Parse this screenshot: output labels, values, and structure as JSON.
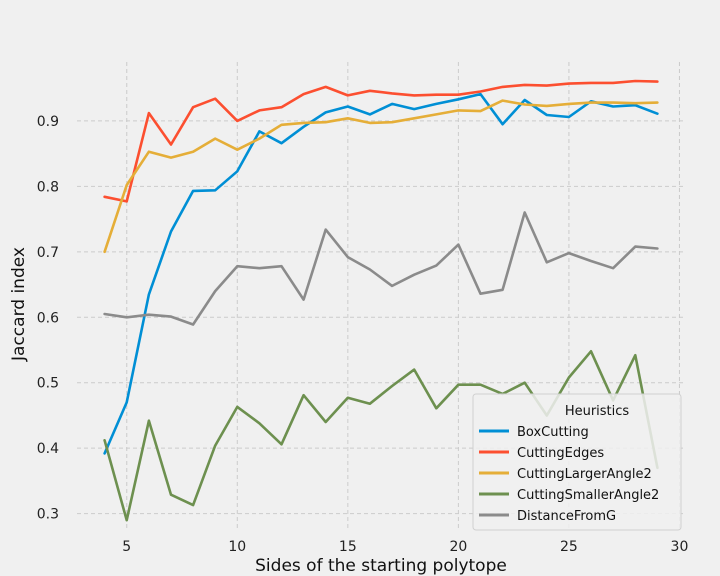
{
  "chart_data": {
    "type": "line",
    "title": "",
    "xlabel": "Sides of the starting polytope",
    "ylabel": "Jaccard index",
    "xlim": [
      2.75,
      30.25
    ],
    "ylim": [
      0.275,
      0.99
    ],
    "xticks": [
      5,
      10,
      15,
      20,
      25,
      30
    ],
    "yticks": [
      0.3,
      0.4,
      0.5,
      0.6,
      0.7,
      0.8,
      0.9
    ],
    "grid": true,
    "legend_title": "Heuristics",
    "legend_position": "lower right",
    "x": [
      4,
      5,
      6,
      7,
      8,
      9,
      10,
      11,
      12,
      13,
      14,
      15,
      16,
      17,
      18,
      19,
      20,
      21,
      22,
      23,
      24,
      25,
      26,
      27,
      28,
      29
    ],
    "series": [
      {
        "name": "BoxCutting",
        "color": "#008fd5",
        "values": [
          0.392,
          0.47,
          0.635,
          0.731,
          0.793,
          0.794,
          0.823,
          0.884,
          0.866,
          0.891,
          0.913,
          0.922,
          0.91,
          0.926,
          0.918,
          0.926,
          0.933,
          0.941,
          0.895,
          0.932,
          0.909,
          0.906,
          0.93,
          0.922,
          0.924,
          0.911
        ]
      },
      {
        "name": "CuttingEdges",
        "color": "#fc4f30",
        "values": [
          0.784,
          0.777,
          0.912,
          0.864,
          0.921,
          0.934,
          0.9,
          0.916,
          0.921,
          0.941,
          0.952,
          0.939,
          0.946,
          0.942,
          0.939,
          0.94,
          0.94,
          0.945,
          0.952,
          0.955,
          0.954,
          0.957,
          0.958,
          0.958,
          0.961,
          0.96
        ]
      },
      {
        "name": "CuttingLargerAngle2",
        "color": "#e5ae38",
        "values": [
          0.7,
          0.802,
          0.853,
          0.844,
          0.853,
          0.873,
          0.856,
          0.873,
          0.894,
          0.897,
          0.898,
          0.904,
          0.897,
          0.898,
          0.904,
          0.91,
          0.916,
          0.915,
          0.931,
          0.925,
          0.923,
          0.926,
          0.928,
          0.928,
          0.927,
          0.928
        ]
      },
      {
        "name": "CuttingSmallerAngle2",
        "color": "#6d904f",
        "values": [
          0.412,
          0.29,
          0.442,
          0.329,
          0.313,
          0.404,
          0.463,
          0.438,
          0.406,
          0.481,
          0.44,
          0.477,
          0.468,
          0.495,
          0.52,
          0.461,
          0.497,
          0.497,
          0.483,
          0.5,
          0.45,
          0.508,
          0.548,
          0.473,
          0.542,
          0.37
        ]
      },
      {
        "name": "DistanceFromG",
        "color": "#8b8b8b",
        "values": [
          0.605,
          0.6,
          0.604,
          0.601,
          0.589,
          0.64,
          0.678,
          0.675,
          0.678,
          0.627,
          0.734,
          0.692,
          0.673,
          0.648,
          0.665,
          0.679,
          0.711,
          0.636,
          0.642,
          0.76,
          0.684,
          0.698,
          0.686,
          0.675,
          0.708,
          0.705
        ]
      }
    ]
  }
}
